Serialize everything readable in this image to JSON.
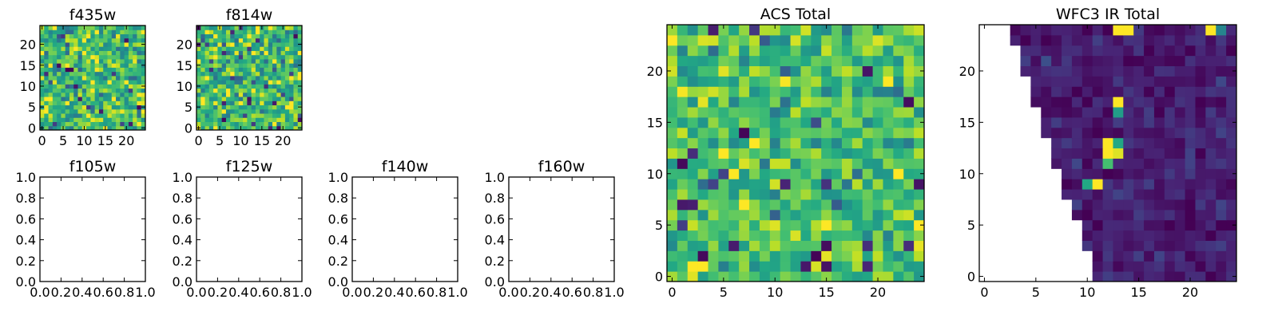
{
  "chart_data": [
    {
      "type": "heatmap",
      "title": "f435w",
      "xlim": [
        -0.5,
        24.5
      ],
      "ylim": [
        -0.5,
        24.5
      ],
      "xticks": [
        0,
        5,
        10,
        15,
        20
      ],
      "yticks": [
        0,
        5,
        10,
        15,
        20
      ],
      "grid_size": 25,
      "colormap": "viridis",
      "value_range": [
        0.0,
        1.0
      ],
      "empty": false,
      "seed": 11,
      "mean": 0.68,
      "spread": 0.16
    },
    {
      "type": "heatmap",
      "title": "f814w",
      "xlim": [
        -0.5,
        24.5
      ],
      "ylim": [
        -0.5,
        24.5
      ],
      "xticks": [
        0,
        5,
        10,
        15,
        20
      ],
      "yticks": [
        0,
        5,
        10,
        15,
        20
      ],
      "grid_size": 25,
      "colormap": "viridis",
      "value_range": [
        0.0,
        1.0
      ],
      "empty": false,
      "seed": 23,
      "mean": 0.66,
      "spread": 0.17
    },
    {
      "type": "heatmap",
      "title": "f105w",
      "xlim": [
        0.0,
        1.0
      ],
      "ylim": [
        0.0,
        1.0
      ],
      "xticks": [
        "0.0",
        "0.2",
        "0.4",
        "0.6",
        "0.8",
        "1.0"
      ],
      "yticks": [
        "0.0",
        "0.2",
        "0.4",
        "0.6",
        "0.8",
        "1.0"
      ],
      "empty": true
    },
    {
      "type": "heatmap",
      "title": "f125w",
      "xlim": [
        0.0,
        1.0
      ],
      "ylim": [
        0.0,
        1.0
      ],
      "xticks": [
        "0.0",
        "0.2",
        "0.4",
        "0.6",
        "0.8",
        "1.0"
      ],
      "yticks": [
        "0.0",
        "0.2",
        "0.4",
        "0.6",
        "0.8",
        "1.0"
      ],
      "empty": true
    },
    {
      "type": "heatmap",
      "title": "f140w",
      "xlim": [
        0.0,
        1.0
      ],
      "ylim": [
        0.0,
        1.0
      ],
      "xticks": [
        "0.0",
        "0.2",
        "0.4",
        "0.6",
        "0.8",
        "1.0"
      ],
      "yticks": [
        "0.0",
        "0.2",
        "0.4",
        "0.6",
        "0.8",
        "1.0"
      ],
      "empty": true
    },
    {
      "type": "heatmap",
      "title": "f160w",
      "xlim": [
        0.0,
        1.0
      ],
      "ylim": [
        0.0,
        1.0
      ],
      "xticks": [
        "0.0",
        "0.2",
        "0.4",
        "0.6",
        "0.8",
        "1.0"
      ],
      "yticks": [
        "0.0",
        "0.2",
        "0.4",
        "0.6",
        "0.8",
        "1.0"
      ],
      "empty": true
    },
    {
      "type": "heatmap",
      "title": "ACS Total",
      "xlim": [
        -0.5,
        24.5
      ],
      "ylim": [
        -0.5,
        24.5
      ],
      "xticks": [
        0,
        5,
        10,
        15,
        20
      ],
      "yticks": [
        0,
        5,
        10,
        15,
        20
      ],
      "grid_size": 25,
      "colormap": "viridis",
      "value_range": [
        0.0,
        1.0
      ],
      "empty": false,
      "seed": 37,
      "mean": 0.7,
      "spread": 0.14
    },
    {
      "type": "heatmap",
      "title": "WFC3 IR Total",
      "xlim": [
        -0.5,
        24.5
      ],
      "ylim": [
        -0.5,
        24.5
      ],
      "xticks": [
        0,
        5,
        10,
        15,
        20
      ],
      "yticks": [
        0,
        5,
        10,
        15,
        20
      ],
      "grid_size": 25,
      "colormap": "viridis",
      "value_range": [
        0.0,
        1.0
      ],
      "empty": false,
      "seed": 53,
      "mean": 0.08,
      "spread": 0.05,
      "masked_region": "left of a diagonal edge running from x=2.5 at y=24 to x=10.5 at y=0",
      "mask_edge_x_at_rows": [
        10.5,
        10.5,
        10.5,
        9.5,
        9.5,
        9.5,
        8.5,
        8.5,
        7.5,
        7.5,
        7.5,
        6.5,
        6.5,
        6.5,
        5.5,
        5.5,
        5.5,
        4.5,
        4.5,
        4.5,
        3.5,
        3.5,
        3.5,
        2.5,
        2.5
      ],
      "bright_pixels": [
        {
          "x": 12,
          "y": 12,
          "value": 1.0
        },
        {
          "x": 12,
          "y": 13,
          "value": 1.0
        },
        {
          "x": 13,
          "y": 12,
          "value": 0.95
        },
        {
          "x": 13,
          "y": 13,
          "value": 0.6
        },
        {
          "x": 13,
          "y": 17,
          "value": 1.0
        },
        {
          "x": 13,
          "y": 16,
          "value": 0.55
        },
        {
          "x": 10,
          "y": 9,
          "value": 0.6
        },
        {
          "x": 11,
          "y": 9,
          "value": 1.0
        },
        {
          "x": 12,
          "y": 11,
          "value": 0.7
        },
        {
          "x": 13,
          "y": 24,
          "value": 1.0
        },
        {
          "x": 14,
          "y": 24,
          "value": 1.0
        },
        {
          "x": 22,
          "y": 24,
          "value": 1.0
        },
        {
          "x": 23,
          "y": 24,
          "value": 0.45
        }
      ]
    }
  ]
}
